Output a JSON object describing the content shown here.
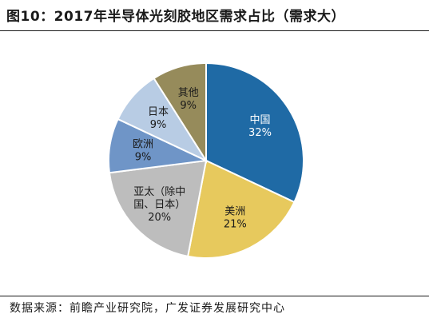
{
  "title": "图10：2017年半导体光刻胶地区需求占比（需求大）",
  "source": "数据来源：前瞻产业研究院，广发证券发展研究中心",
  "chart_data": {
    "type": "pie",
    "title": "图10：2017年半导体光刻胶地区需求占比（需求大）",
    "slices": [
      {
        "name": "中国",
        "value": 32,
        "display": "32%",
        "label_lines": [
          "中国"
        ],
        "color": "#1f6aa5",
        "text_color": "#ffffff"
      },
      {
        "name": "美洲",
        "value": 21,
        "display": "21%",
        "label_lines": [
          "美洲"
        ],
        "color": "#e7c95d",
        "text_color": "#1a1a1a"
      },
      {
        "name": "亚太（除中国、日本）",
        "value": 20,
        "display": "20%",
        "label_lines": [
          "亚太（除中",
          "国、日本）"
        ],
        "color": "#bdbdbd",
        "text_color": "#1a1a1a"
      },
      {
        "name": "欧洲",
        "value": 9,
        "display": "9%",
        "label_lines": [
          "欧洲"
        ],
        "color": "#6f95c7",
        "text_color": "#1a1a1a"
      },
      {
        "name": "日本",
        "value": 9,
        "display": "9%",
        "label_lines": [
          "日本"
        ],
        "color": "#b8cce4",
        "text_color": "#1a1a1a"
      },
      {
        "name": "其他",
        "value": 9,
        "display": "9%",
        "label_lines": [
          "其他"
        ],
        "color": "#968b5b",
        "text_color": "#1a1a1a"
      }
    ],
    "start_angle_deg": 0,
    "direction": "clockwise"
  }
}
